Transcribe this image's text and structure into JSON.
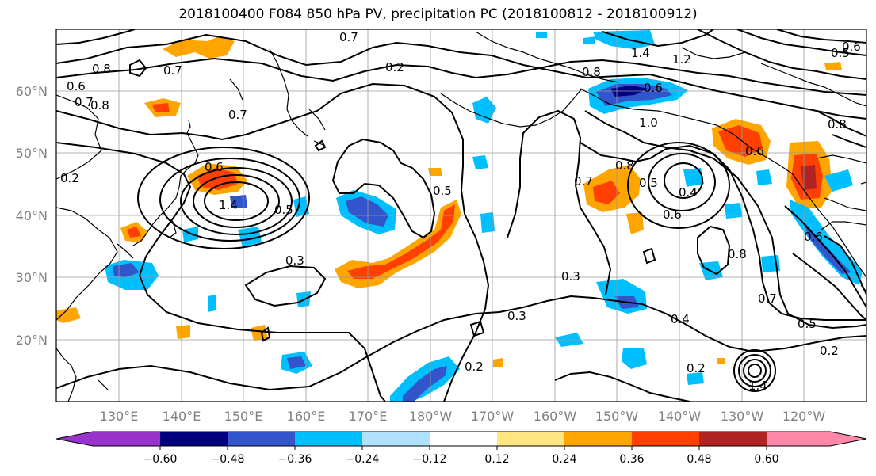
{
  "title": "2018100400 F084 850 hPa PV, precipitation PC (2018100812 - 2018100912)",
  "map": {
    "lat_labels": [
      "60°N",
      "50°N",
      "40°N",
      "30°N",
      "20°N"
    ],
    "lon_labels": [
      "130°E",
      "140°E",
      "150°E",
      "160°E",
      "170°E",
      "180°W",
      "170°W",
      "160°W",
      "150°W",
      "140°W",
      "130°W",
      "120°W"
    ],
    "contour_labels": [
      "0.8",
      "0.7",
      "0.6",
      "0.7",
      "0.8",
      "0.7",
      "0.2",
      "0.6",
      "1.4",
      "0.5",
      "0.3",
      "0.5",
      "0.3",
      "0.3",
      "0.2",
      "0.4",
      "1.2",
      "1.4",
      "0.8",
      "0.6",
      "1.0",
      "0.8",
      "0.7",
      "0.5",
      "0.4",
      "0.6",
      "0.8",
      "0.7",
      "0.5",
      "0.2",
      "0.2",
      "1.4",
      "0.6",
      "0.5",
      "0.6",
      "0.8",
      "0.6",
      "0.2",
      "0.7"
    ]
  },
  "colorbar": {
    "tick_labels": [
      "−0.60",
      "−0.48",
      "−0.36",
      "−0.24",
      "−0.12",
      "0.12",
      "0.24",
      "0.36",
      "0.48",
      "0.60"
    ],
    "colors": [
      "#9933cc",
      "#000080",
      "#3355cc",
      "#00bfff",
      "#b0e2ff",
      "#ffffff",
      "#ffffff",
      "#ffe680",
      "#ffa500",
      "#ff4000",
      "#b22222",
      "#ff88aa"
    ]
  }
}
